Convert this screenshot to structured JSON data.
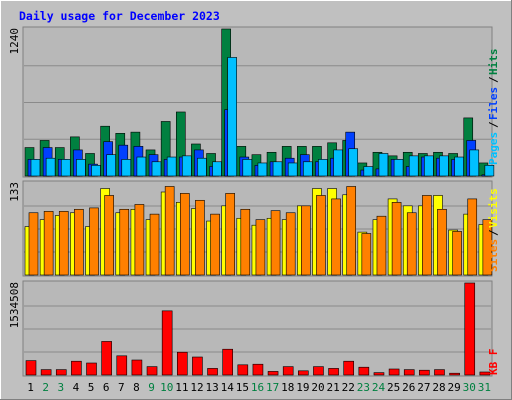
{
  "chart_data": [
    {
      "type": "bar",
      "title": "Daily usage for December 2023",
      "categories": [
        "1",
        "2",
        "3",
        "4",
        "5",
        "6",
        "7",
        "8",
        "9",
        "10",
        "11",
        "12",
        "13",
        "14",
        "15",
        "16",
        "17",
        "18",
        "19",
        "20",
        "21",
        "22",
        "23",
        "24",
        "25",
        "26",
        "27",
        "28",
        "29",
        "30",
        "31"
      ],
      "weekend_days": [
        "2",
        "3",
        "9",
        "10",
        "16",
        "17",
        "23",
        "24",
        "30",
        "31"
      ],
      "ylabel_value": "1240",
      "legend": [
        "Pages",
        "Files",
        "Hits"
      ],
      "ylim": [
        0,
        1240
      ],
      "series": [
        {
          "name": "Hits",
          "color": "#008040",
          "values": [
            240,
            300,
            240,
            330,
            190,
            420,
            360,
            370,
            220,
            460,
            540,
            270,
            190,
            1240,
            250,
            180,
            200,
            250,
            250,
            250,
            280,
            300,
            110,
            200,
            170,
            200,
            190,
            200,
            190,
            490,
            110
          ]
        },
        {
          "name": "Files",
          "color": "#0040ff",
          "values": [
            140,
            240,
            140,
            220,
            100,
            290,
            260,
            250,
            180,
            140,
            160,
            220,
            80,
            560,
            160,
            90,
            120,
            150,
            180,
            120,
            150,
            370,
            50,
            60,
            140,
            80,
            160,
            150,
            140,
            300,
            10
          ]
        },
        {
          "name": "Pages",
          "color": "#00c0ff",
          "values": [
            140,
            150,
            140,
            140,
            90,
            180,
            140,
            160,
            120,
            160,
            170,
            150,
            120,
            1000,
            140,
            110,
            120,
            110,
            120,
            140,
            220,
            230,
            80,
            190,
            140,
            170,
            170,
            170,
            160,
            220,
            90
          ]
        }
      ]
    },
    {
      "type": "bar",
      "ylabel_value": "133",
      "legend": [
        "Sites",
        "Visits"
      ],
      "ylim": [
        0,
        133
      ],
      "series": [
        {
          "name": "Visits",
          "color": "#ffff00",
          "values": [
            70,
            80,
            86,
            90,
            70,
            125,
            90,
            95,
            80,
            120,
            105,
            96,
            78,
            100,
            82,
            72,
            82,
            80,
            100,
            125,
            125,
            116,
            62,
            80,
            110,
            100,
            100,
            115,
            65,
            88,
            73
          ]
        },
        {
          "name": "Sites",
          "color": "#ff8000",
          "values": [
            90,
            92,
            92,
            95,
            97,
            115,
            95,
            102,
            88,
            128,
            118,
            108,
            88,
            118,
            95,
            80,
            93,
            90,
            100,
            115,
            110,
            128,
            60,
            85,
            105,
            90,
            115,
            95,
            63,
            110,
            80
          ]
        }
      ]
    },
    {
      "type": "bar",
      "ylabel_value": "1534508",
      "legend": [
        "KB F"
      ],
      "ylim": [
        0,
        1534508
      ],
      "series": [
        {
          "name": "KB F",
          "color": "#ff0000",
          "values": [
            240000,
            90000,
            90000,
            230000,
            200000,
            560000,
            320000,
            250000,
            140000,
            1070000,
            380000,
            300000,
            110000,
            430000,
            170000,
            180000,
            60000,
            140000,
            70000,
            140000,
            110000,
            230000,
            130000,
            40000,
            100000,
            90000,
            80000,
            90000,
            30000,
            1534508,
            50000
          ]
        }
      ]
    }
  ]
}
